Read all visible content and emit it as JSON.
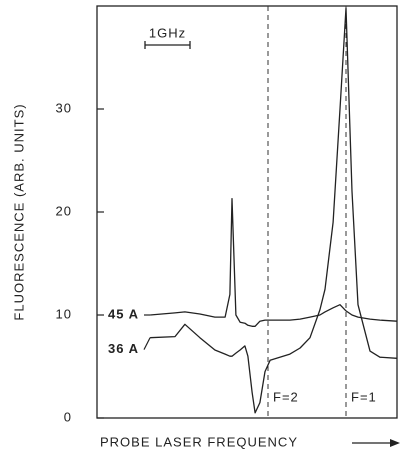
{
  "chart_data": {
    "type": "line",
    "ylabel": "FLUORESCENCE (ARB. UNITS)",
    "xlabel": "PROBE LASER FREQUENCY",
    "xlim": [
      0,
      100
    ],
    "ylim": [
      0,
      40
    ],
    "yticks": [
      0,
      10,
      20,
      30
    ],
    "x": [
      17.7,
      26,
      29.3,
      34.3,
      39.3,
      42.7,
      44.3,
      45,
      46.3,
      47.7,
      49.3,
      50.3,
      51.7,
      52.7,
      54.3,
      56,
      57.7,
      64.3,
      67.7,
      71,
      74.3,
      76,
      78.7,
      81,
      83,
      85,
      87,
      91,
      94.3,
      100
    ],
    "series": [
      {
        "name": "45 A",
        "color": "#222222",
        "values": [
          10.0,
          10.2,
          10.3,
          10.1,
          9.8,
          9.8,
          12,
          21.3,
          10,
          9.3,
          9.2,
          9.0,
          8.9,
          8.9,
          9.4,
          9.5,
          9.5,
          9.5,
          9.6,
          9.8,
          10.0,
          10.3,
          10.7,
          11.0,
          10.4,
          10.0,
          9.8,
          9.6,
          9.5,
          9.4
        ]
      },
      {
        "name": "36 A",
        "color": "#222222",
        "values": [
          7.8,
          7.9,
          9.1,
          7.8,
          6.6,
          6.2,
          6.0,
          6.0,
          6.3,
          6.6,
          7.0,
          6.0,
          2.5,
          0.5,
          1.5,
          4.5,
          5.6,
          6.2,
          6.8,
          7.8,
          10.5,
          12.5,
          19,
          30,
          39.8,
          22,
          11,
          6.5,
          5.9,
          5.8
        ]
      }
    ],
    "annotations": [
      {
        "label": "F=2",
        "x": 57
      },
      {
        "label": "F=1",
        "x": 83
      }
    ],
    "scalebar": {
      "label": "1GHz",
      "x": [
        16,
        31
      ]
    }
  }
}
